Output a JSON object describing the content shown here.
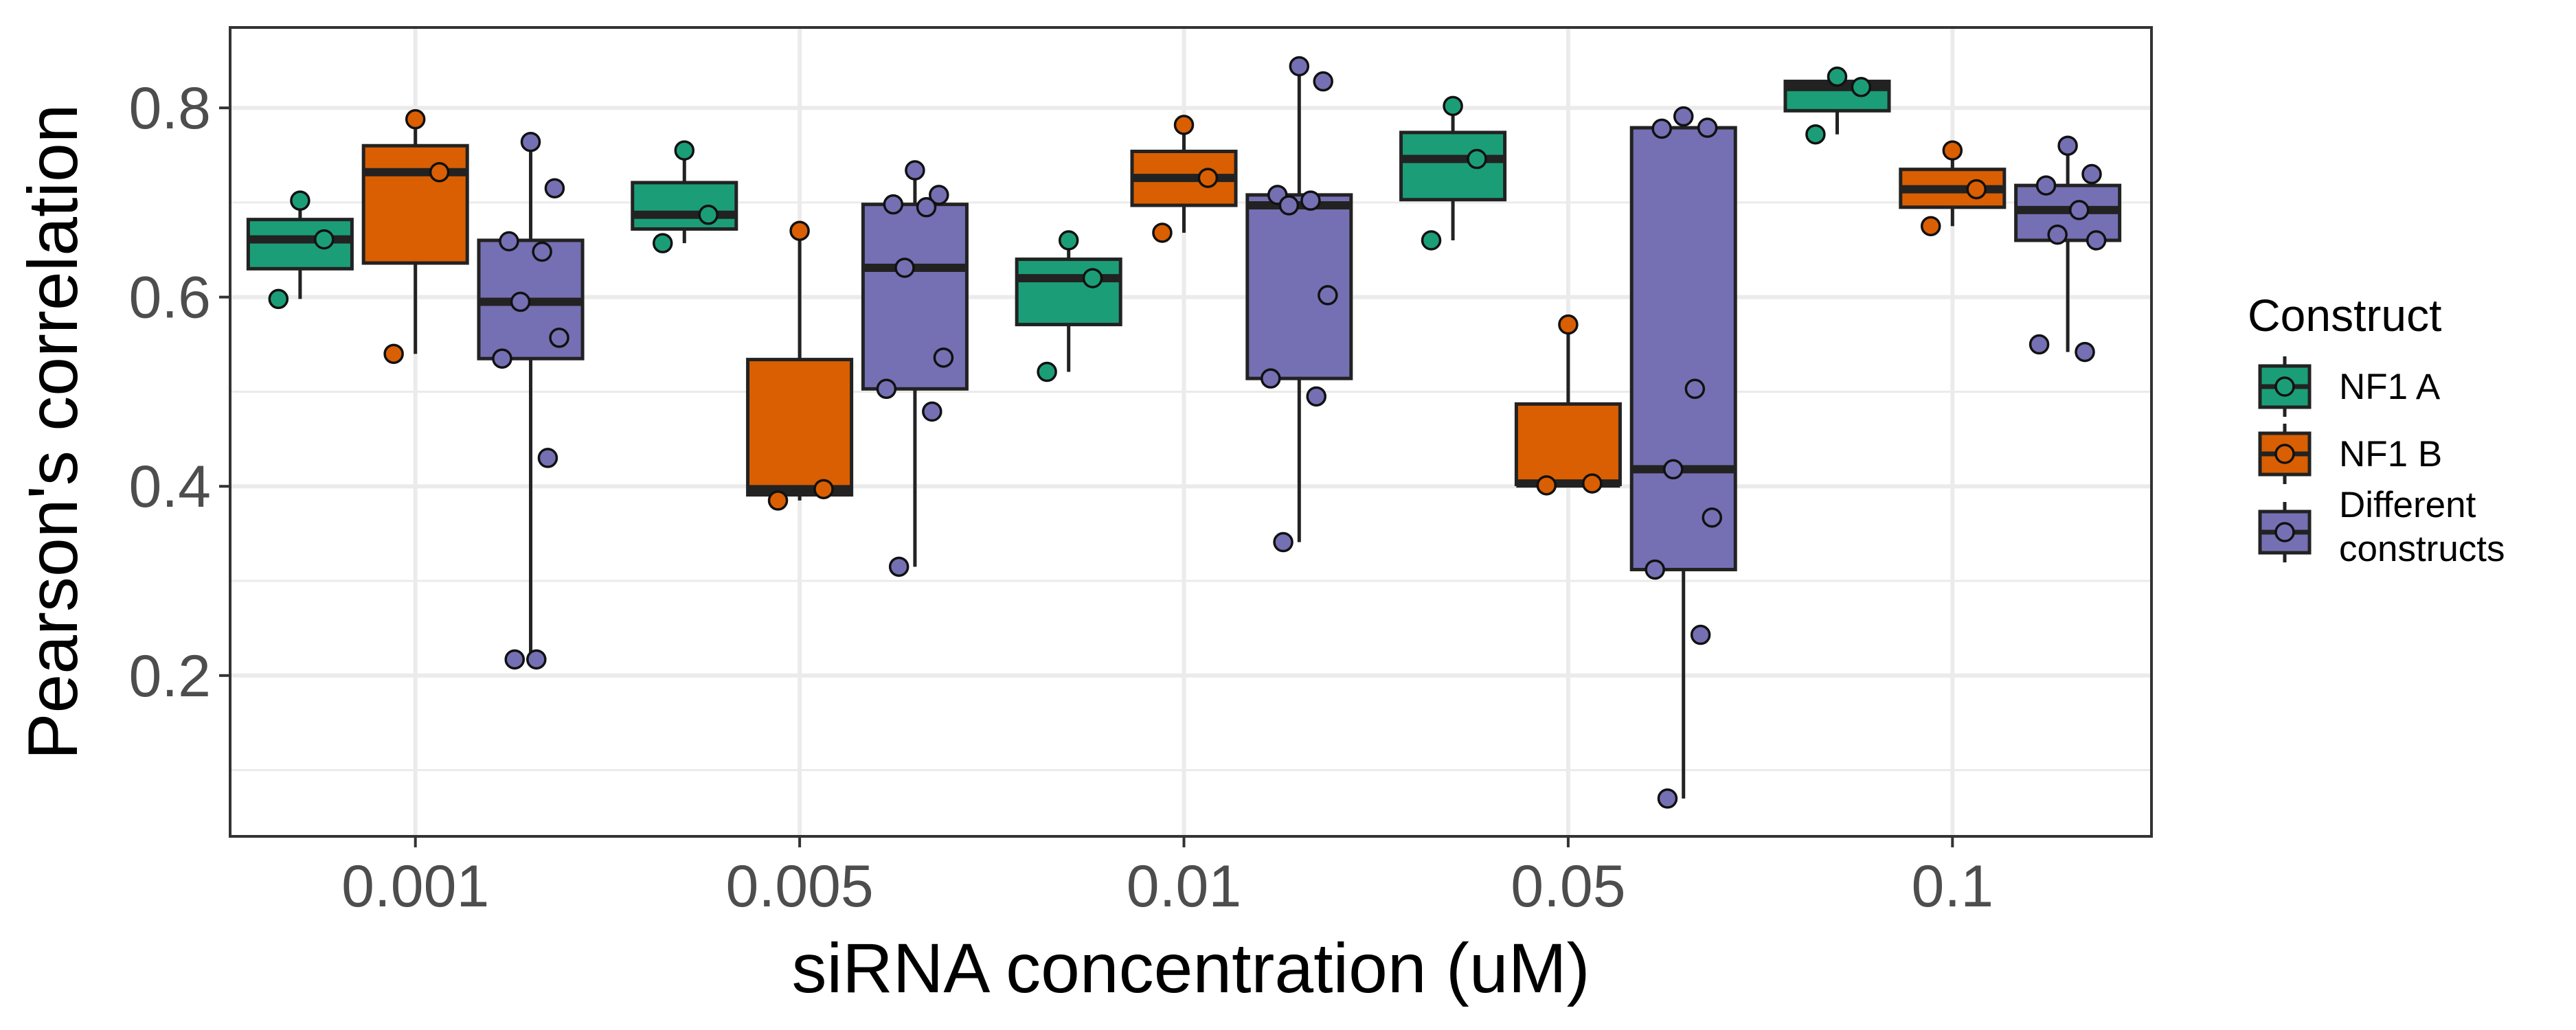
{
  "chart_data": {
    "type": "box",
    "xlabel": "siRNA concentration (uM)",
    "ylabel": "Pearson's correlation",
    "categories": [
      "0.001",
      "0.005",
      "0.01",
      "0.05",
      "0.1"
    ],
    "ylim": [
      0.03,
      0.885
    ],
    "yticks": [
      0.2,
      0.4,
      0.6,
      0.8
    ],
    "ytick_labels": [
      "0.2",
      "0.4",
      "0.6",
      "0.8"
    ],
    "grid": true,
    "legend": {
      "title": "Construct",
      "position": "right",
      "entries": [
        "NF1 A",
        "NF1 B",
        "Different constructs"
      ]
    },
    "colors": {
      "NF1 A": "#1b9e77",
      "NF1 B": "#d95f02",
      "Different constructs": "#7570b3"
    },
    "series": [
      {
        "name": "NF1 A",
        "boxes": [
          {
            "category": "0.001",
            "min": 0.598,
            "q1": 0.63,
            "median": 0.661,
            "q3": 0.682,
            "max": 0.702,
            "points": [
              0.702,
              0.661,
              0.598
            ]
          },
          {
            "category": "0.005",
            "min": 0.657,
            "q1": 0.672,
            "median": 0.687,
            "q3": 0.721,
            "max": 0.755,
            "points": [
              0.755,
              0.687,
              0.657
            ]
          },
          {
            "category": "0.01",
            "min": 0.521,
            "q1": 0.571,
            "median": 0.62,
            "q3": 0.64,
            "max": 0.66,
            "points": [
              0.66,
              0.62,
              0.521
            ]
          },
          {
            "category": "0.05",
            "min": 0.66,
            "q1": 0.703,
            "median": 0.746,
            "q3": 0.774,
            "max": 0.802,
            "points": [
              0.802,
              0.746,
              0.66
            ]
          },
          {
            "category": "0.1",
            "min": 0.772,
            "q1": 0.797,
            "median": 0.822,
            "q3": 0.828,
            "max": 0.833,
            "points": [
              0.833,
              0.822,
              0.772
            ]
          }
        ]
      },
      {
        "name": "NF1 B",
        "boxes": [
          {
            "category": "0.001",
            "min": 0.54,
            "q1": 0.636,
            "median": 0.732,
            "q3": 0.76,
            "max": 0.788,
            "points": [
              0.788,
              0.732,
              0.54
            ]
          },
          {
            "category": "0.005",
            "min": 0.385,
            "q1": 0.391,
            "median": 0.397,
            "q3": 0.534,
            "max": 0.67,
            "points": [
              0.67,
              0.397,
              0.385
            ]
          },
          {
            "category": "0.01",
            "min": 0.668,
            "q1": 0.697,
            "median": 0.726,
            "q3": 0.754,
            "max": 0.782,
            "points": [
              0.782,
              0.726,
              0.668
            ]
          },
          {
            "category": "0.05",
            "min": 0.401,
            "q1": 0.402,
            "median": 0.403,
            "q3": 0.487,
            "max": 0.571,
            "points": [
              0.571,
              0.403,
              0.401
            ]
          },
          {
            "category": "0.1",
            "min": 0.675,
            "q1": 0.695,
            "median": 0.714,
            "q3": 0.735,
            "max": 0.755,
            "points": [
              0.755,
              0.714,
              0.675
            ]
          }
        ]
      },
      {
        "name": "Different constructs",
        "boxes": [
          {
            "category": "0.001",
            "min": 0.217,
            "q1": 0.535,
            "median": 0.595,
            "q3": 0.66,
            "max": 0.764,
            "points": [
              0.764,
              0.715,
              0.659,
              0.648,
              0.595,
              0.557,
              0.535,
              0.43,
              0.217,
              0.217
            ]
          },
          {
            "category": "0.005",
            "min": 0.315,
            "q1": 0.503,
            "median": 0.631,
            "q3": 0.698,
            "max": 0.734,
            "points": [
              0.734,
              0.708,
              0.698,
              0.695,
              0.631,
              0.536,
              0.503,
              0.479,
              0.315
            ]
          },
          {
            "category": "0.01",
            "min": 0.341,
            "q1": 0.514,
            "median": 0.697,
            "q3": 0.708,
            "max": 0.844,
            "points": [
              0.844,
              0.828,
              0.708,
              0.702,
              0.697,
              0.602,
              0.514,
              0.495,
              0.341
            ]
          },
          {
            "category": "0.05",
            "min": 0.07,
            "q1": 0.312,
            "median": 0.418,
            "q3": 0.779,
            "max": 0.791,
            "points": [
              0.791,
              0.779,
              0.778,
              0.503,
              0.418,
              0.367,
              0.312,
              0.243,
              0.07
            ]
          },
          {
            "category": "0.1",
            "min": 0.542,
            "q1": 0.66,
            "median": 0.692,
            "q3": 0.718,
            "max": 0.76,
            "points": [
              0.76,
              0.73,
              0.718,
              0.692,
              0.666,
              0.66,
              0.55,
              0.542
            ]
          }
        ]
      }
    ]
  }
}
